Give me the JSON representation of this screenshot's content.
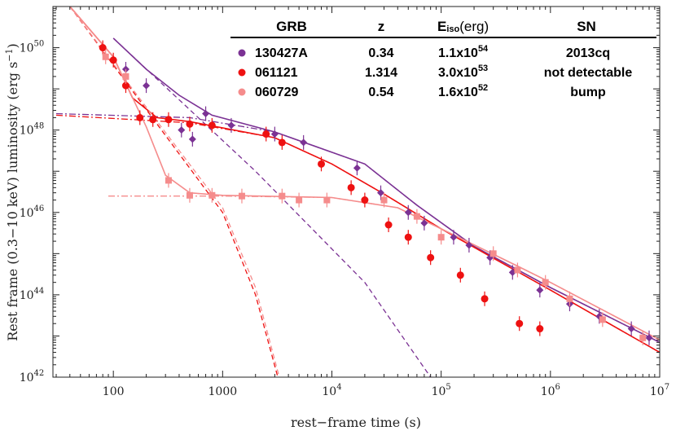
{
  "chart_data": {
    "type": "scatter",
    "title": "",
    "xlabel": "rest−frame time (s)",
    "ylabel_main": "Rest frame (0.3−10 keV) luminosity (erg s",
    "ylabel_exp": "−1",
    "ylabel_close": ")",
    "xscale": "log",
    "yscale": "log",
    "xlim": [
      28,
      10000000
    ],
    "ylim": [
      1e+42,
      1e+51
    ],
    "x_ticks": [
      {
        "value": 100,
        "base": "100",
        "exp": ""
      },
      {
        "value": 1000,
        "base": "1000",
        "exp": ""
      },
      {
        "value": 10000,
        "base": "10",
        "exp": "4"
      },
      {
        "value": 100000,
        "base": "10",
        "exp": "5"
      },
      {
        "value": 1000000,
        "base": "10",
        "exp": "6"
      },
      {
        "value": 10000000,
        "base": "10",
        "exp": "7"
      }
    ],
    "y_ticks": [
      {
        "value": 1e+42,
        "base": "10",
        "exp": "42"
      },
      {
        "value": 1e+44,
        "base": "10",
        "exp": "44"
      },
      {
        "value": 1e+46,
        "base": "10",
        "exp": "46"
      },
      {
        "value": 1e+48,
        "base": "10",
        "exp": "48"
      },
      {
        "value": 1e+50,
        "base": "10",
        "exp": "50"
      }
    ],
    "table": {
      "headers": {
        "grb": "GRB",
        "z": "z",
        "eiso_main": "E",
        "eiso_sub": "iso",
        "eiso_unit": "(erg)",
        "sn": "SN"
      },
      "rows": [
        {
          "grb": "130427A",
          "z": "0.34",
          "e_base": "1.1x10",
          "e_exp": "54",
          "sn": "2013cq",
          "color": "#7b3294"
        },
        {
          "grb": "061121",
          "z": "1.314",
          "e_base": "3.0x10",
          "e_exp": "53",
          "sn": "not detectable",
          "color": "#ee1111"
        },
        {
          "grb": "060729",
          "z": "0.54",
          "e_base": "1.6x10",
          "e_exp": "52",
          "sn": "bump",
          "color": "#f58c8c"
        }
      ]
    },
    "series": [
      {
        "name": "130427A",
        "color": "#7b3294",
        "marker": "diamond",
        "points": [
          [
            130,
            3e+49
          ],
          [
            200,
            1.2e+49
          ],
          [
            420,
            1e+48
          ],
          [
            530,
            6e+47
          ],
          [
            700,
            2.5e+48
          ],
          [
            1200,
            1.3e+48
          ],
          [
            3000,
            8e+47
          ],
          [
            5500,
            5e+47
          ],
          [
            17000,
            1.2e+47
          ],
          [
            28000,
            3e+46
          ],
          [
            50000,
            1e+46
          ],
          [
            70000,
            5.5e+45
          ],
          [
            130000,
            2.5e+45
          ],
          [
            180000,
            1.6e+45
          ],
          [
            280000,
            8e+44
          ],
          [
            450000,
            3.5e+44
          ],
          [
            800000,
            1.3e+44
          ],
          [
            1500000,
            6e+43
          ],
          [
            2800000,
            3e+43
          ],
          [
            5500000,
            1.5e+43
          ],
          [
            8000000,
            9e+42
          ]
        ],
        "fit_steep": [
          [
            100,
            1.7e+50
          ],
          [
            2000,
            1e+47
          ],
          [
            20000,
            2e+44
          ],
          [
            80000,
            1e+42
          ]
        ],
        "fit_plateau": [
          [
            30,
            2.5e+48
          ],
          [
            500,
            2e+48
          ],
          [
            3000,
            9e+47
          ],
          [
            20000,
            1.5e+47
          ],
          [
            60000,
            1.5e+46
          ],
          [
            200000,
            1.5e+45
          ],
          [
            1000000,
            1.5e+44
          ],
          [
            10000000,
            7e+42
          ]
        ],
        "fit_total": [
          [
            100,
            1.7e+50
          ],
          [
            200,
            3e+49
          ],
          [
            400,
            7e+48
          ],
          [
            800,
            2.3e+48
          ],
          [
            3000,
            9e+47
          ],
          [
            20000,
            1.5e+47
          ],
          [
            60000,
            1.5e+46
          ],
          [
            200000,
            1.5e+45
          ],
          [
            1000000,
            1.5e+44
          ],
          [
            10000000,
            7e+42
          ]
        ]
      },
      {
        "name": "061121",
        "color": "#ee1111",
        "marker": "circle",
        "points": [
          [
            80,
            1e+50
          ],
          [
            100,
            5e+49
          ],
          [
            130,
            1.2e+49
          ],
          [
            175,
            2e+48
          ],
          [
            230,
            1.8e+48
          ],
          [
            320,
            1.8e+48
          ],
          [
            500,
            1.4e+48
          ],
          [
            800,
            1.3e+48
          ],
          [
            2500,
            8e+47
          ],
          [
            3500,
            5e+47
          ],
          [
            8000,
            1.5e+47
          ],
          [
            15000,
            4e+46
          ],
          [
            20000,
            2e+46
          ],
          [
            33000,
            5e+45
          ],
          [
            50000,
            2.5e+45
          ],
          [
            80000,
            8e+44
          ],
          [
            150000,
            3e+44
          ],
          [
            250000,
            8e+43
          ],
          [
            520000,
            2e+43
          ],
          [
            800000,
            1.5e+43
          ]
        ],
        "fit_steep": [
          [
            40,
            1e+51
          ],
          [
            1000,
            1e+46
          ],
          [
            2000,
            1e+44
          ],
          [
            3200,
            1e+42
          ]
        ],
        "fit_plateau": [
          [
            30,
            2.3e+48
          ],
          [
            500,
            1.5e+48
          ],
          [
            3000,
            6.5e+47
          ],
          [
            10000,
            1.5e+47
          ],
          [
            30000,
            2.8e+46
          ],
          [
            100000,
            4e+45
          ],
          [
            1000000,
            1.3e+44
          ],
          [
            10000000,
            4e+42
          ]
        ],
        "fit_total": [
          [
            40,
            1e+51
          ],
          [
            100,
            6e+49
          ],
          [
            150,
            6e+48
          ],
          [
            250,
            2e+48
          ],
          [
            500,
            1.6e+48
          ],
          [
            3000,
            6.5e+47
          ],
          [
            10000,
            1.5e+47
          ],
          [
            30000,
            2.8e+46
          ],
          [
            100000,
            4e+45
          ],
          [
            1000000,
            1.3e+44
          ],
          [
            10000000,
            4e+42
          ]
        ]
      },
      {
        "name": "060729",
        "color": "#f58c8c",
        "marker": "square",
        "points": [
          [
            85,
            6e+49
          ],
          [
            130,
            2e+49
          ],
          [
            320,
            6e+46
          ],
          [
            500,
            2.6e+46
          ],
          [
            800,
            2.6e+46
          ],
          [
            1500,
            2.5e+46
          ],
          [
            3500,
            2.5e+46
          ],
          [
            5000,
            2e+46
          ],
          [
            9000,
            2e+46
          ],
          [
            30000,
            2e+46
          ],
          [
            60000,
            8e+45
          ],
          [
            100000,
            2.5e+45
          ],
          [
            300000,
            1e+45
          ],
          [
            500000,
            4e+44
          ],
          [
            900000,
            2e+44
          ],
          [
            1500000,
            8e+43
          ],
          [
            3000000,
            2.5e+43
          ],
          [
            7000000,
            9e+42
          ]
        ],
        "fit_steep": [
          [
            40,
            1e+51
          ],
          [
            1000,
            1.3e+46
          ],
          [
            2000,
            1.5e+44
          ],
          [
            3300,
            1e+42
          ]
        ],
        "fit_plateau": [
          [
            90,
            2.5e+46
          ],
          [
            1000,
            2.5e+46
          ],
          [
            10000,
            2.3e+46
          ],
          [
            40000,
            1.3e+46
          ],
          [
            100000,
            4e+45
          ],
          [
            500000,
            5e+44
          ],
          [
            1000000,
            2e+44
          ],
          [
            10000000,
            8e+42
          ]
        ],
        "fit_total": [
          [
            40,
            1e+51
          ],
          [
            100,
            6e+49
          ],
          [
            200,
            1.2e+48
          ],
          [
            300,
            8e+46
          ],
          [
            500,
            3e+46
          ],
          [
            1000,
            2.6e+46
          ],
          [
            10000,
            2.3e+46
          ],
          [
            40000,
            1.3e+46
          ],
          [
            100000,
            4e+45
          ],
          [
            500000,
            5e+44
          ],
          [
            1000000,
            2e+44
          ],
          [
            10000000,
            8e+42
          ]
        ]
      }
    ]
  }
}
